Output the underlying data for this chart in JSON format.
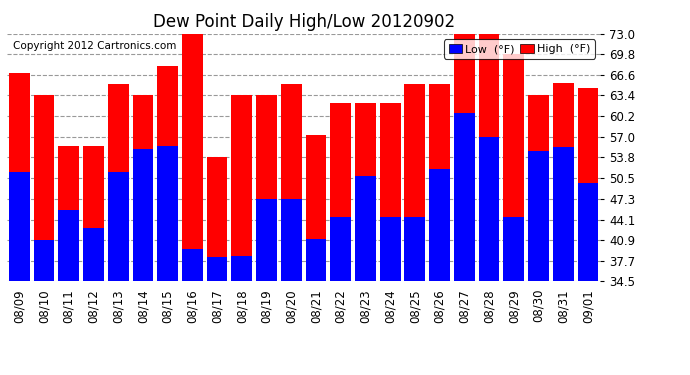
{
  "title": "Dew Point Daily High/Low 20120902",
  "copyright": "Copyright 2012 Cartronics.com",
  "ylabel_right_ticks": [
    34.5,
    37.7,
    40.9,
    44.1,
    47.3,
    50.5,
    53.8,
    57.0,
    60.2,
    63.4,
    66.6,
    69.8,
    73.0
  ],
  "ylim": [
    34.5,
    73.0
  ],
  "dates": [
    "08/09",
    "08/10",
    "08/11",
    "08/12",
    "08/13",
    "08/14",
    "08/15",
    "08/16",
    "08/17",
    "08/18",
    "08/19",
    "08/20",
    "08/21",
    "08/22",
    "08/23",
    "08/24",
    "08/25",
    "08/26",
    "08/27",
    "08/28",
    "08/29",
    "08/30",
    "08/31",
    "09/01"
  ],
  "high": [
    66.9,
    63.4,
    55.5,
    55.5,
    65.2,
    63.4,
    68.0,
    73.0,
    53.8,
    63.4,
    63.4,
    65.2,
    57.2,
    62.2,
    62.2,
    62.2,
    65.2,
    65.2,
    73.4,
    73.0,
    69.8,
    63.4,
    65.4,
    64.5
  ],
  "low": [
    51.5,
    40.9,
    45.6,
    42.8,
    51.5,
    55.0,
    55.6,
    39.5,
    38.3,
    38.5,
    47.3,
    47.3,
    41.0,
    44.5,
    50.8,
    44.5,
    44.5,
    52.0,
    60.6,
    57.0,
    44.5,
    54.7,
    55.4,
    49.8
  ],
  "ymin": 34.5,
  "high_color": "#ff0000",
  "low_color": "#0000ff",
  "bg_color": "#ffffff",
  "grid_color": "#999999",
  "title_fontsize": 12,
  "tick_fontsize": 8.5,
  "copyright_fontsize": 7.5,
  "legend_labels": [
    "Low  (°F)",
    "High  (°F)"
  ]
}
